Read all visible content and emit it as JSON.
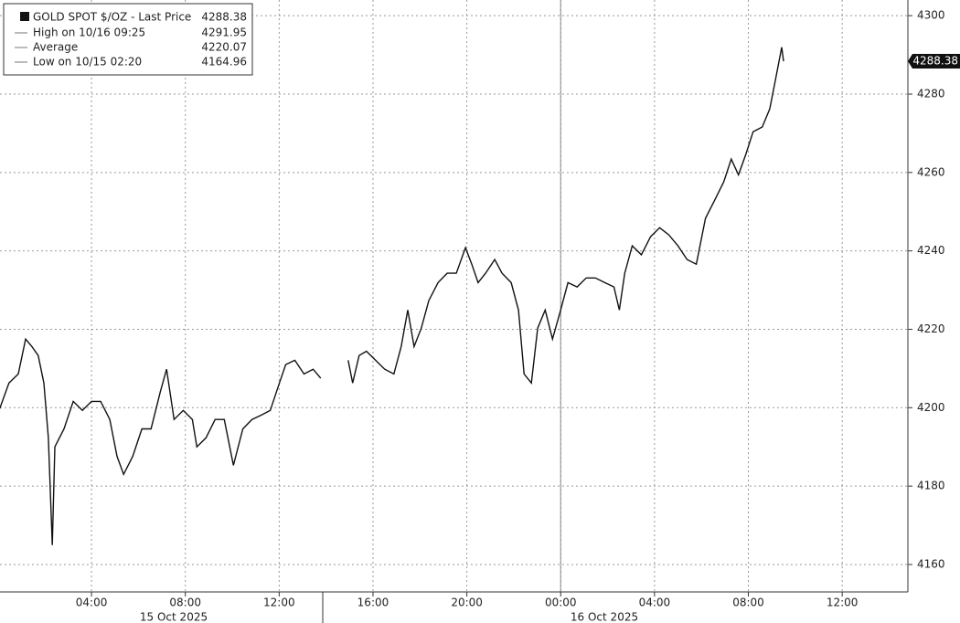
{
  "chart_data": {
    "type": "line",
    "legend": {
      "title": "GOLD SPOT $/OZ - Last Price",
      "last_price": 4288.38,
      "items": [
        {
          "label": "High on 10/16 09:25",
          "value": 4291.95
        },
        {
          "label": "Average",
          "value": 4220.07
        },
        {
          "label": "Low on 10/15 02:20",
          "value": 4164.96
        }
      ]
    },
    "date_labels": [
      "15 Oct 2025",
      "16 Oct 2025"
    ],
    "x": [
      0.09,
      0.48,
      0.88,
      1.19,
      1.46,
      1.73,
      1.97,
      2.16,
      2.33,
      2.44,
      2.83,
      3.22,
      3.61,
      4,
      4.39,
      4.78,
      5.09,
      5.37,
      5.76,
      6.15,
      6.54,
      6.93,
      7.2,
      7.52,
      7.91,
      8.3,
      8.49,
      8.88,
      9.27,
      9.66,
      10.05,
      10.45,
      10.84,
      11.23,
      11.62,
      12.01,
      12.28,
      12.67,
      13.06,
      13.45,
      13.77,
      14.3,
      14.94,
      15.13,
      15.41,
      15.72,
      16.11,
      16.5,
      16.89,
      17.2,
      17.48,
      17.75,
      18.06,
      18.38,
      18.77,
      19.16,
      19.55,
      19.94,
      20.21,
      20.48,
      20.8,
      21.19,
      21.5,
      21.89,
      22.2,
      22.44,
      22.75,
      23.02,
      23.34,
      23.65,
      24,
      24.31,
      24.7,
      25.09,
      25.48,
      25.88,
      26.27,
      26.5,
      26.73,
      27.05,
      27.44,
      27.83,
      28.22,
      28.61,
      29,
      29.39,
      29.78,
      30.17,
      30.56,
      30.95,
      31.27,
      31.58,
      31.89,
      32.2,
      32.59,
      32.91,
      33.14,
      33.42,
      33.5
    ],
    "series": [
      {
        "name": "GOLD SPOT $/OZ",
        "color": "#111111",
        "values": [
          4199.8,
          4206.3,
          4208.6,
          4217.5,
          4215.6,
          4213.3,
          4206.3,
          4192.3,
          4164.96,
          4190,
          4194.6,
          4201.6,
          4199.3,
          4201.6,
          4201.6,
          4197,
          4187.6,
          4183,
          4187.6,
          4194.6,
          4194.6,
          4204,
          4209.8,
          4197,
          4199.3,
          4197,
          4190,
          4192.3,
          4197,
          4197,
          4185.3,
          4194.6,
          4197,
          4198.1,
          4199.3,
          4206.3,
          4211,
          4212.1,
          4208.6,
          4209.8,
          4207.5,
          null,
          4212.1,
          4206.3,
          4213.3,
          4214.4,
          4212.1,
          4209.8,
          4208.6,
          4215.6,
          4224.9,
          4215.6,
          4220.3,
          4227.3,
          4231.9,
          4234.3,
          4234.3,
          4240.8,
          4236.6,
          4231.9,
          4234.3,
          4237.8,
          4234.3,
          4231.9,
          4224.9,
          4208.6,
          4206.3,
          4220.3,
          4224.9,
          4217.5,
          4224.9,
          4231.9,
          4230.8,
          4233.1,
          4233.1,
          4231.9,
          4230.8,
          4224.9,
          4234.3,
          4241.3,
          4239,
          4243.6,
          4245.9,
          4244.1,
          4241.3,
          4237.8,
          4236.6,
          4248.3,
          4252.9,
          4257.6,
          4263.4,
          4259.4,
          4264.6,
          4270.4,
          4271.6,
          4276.2,
          4283.2,
          4291.95,
          4288.38
        ]
      }
    ],
    "xlim": [
      0.1,
      38.8
    ],
    "xticks": [
      {
        "value": 4,
        "label": "04:00"
      },
      {
        "value": 8,
        "label": "08:00"
      },
      {
        "value": 12,
        "label": "12:00"
      },
      {
        "value": 16,
        "label": "16:00"
      },
      {
        "value": 20,
        "label": "20:00"
      },
      {
        "value": 24,
        "label": "00:00"
      },
      {
        "value": 28,
        "label": "04:00"
      },
      {
        "value": 32,
        "label": "08:00"
      },
      {
        "value": 36,
        "label": "12:00"
      }
    ],
    "ylim": [
      4153,
      4304
    ],
    "yticks": [
      4160,
      4180,
      4200,
      4220,
      4240,
      4260,
      4280,
      4300
    ],
    "grid": true
  }
}
